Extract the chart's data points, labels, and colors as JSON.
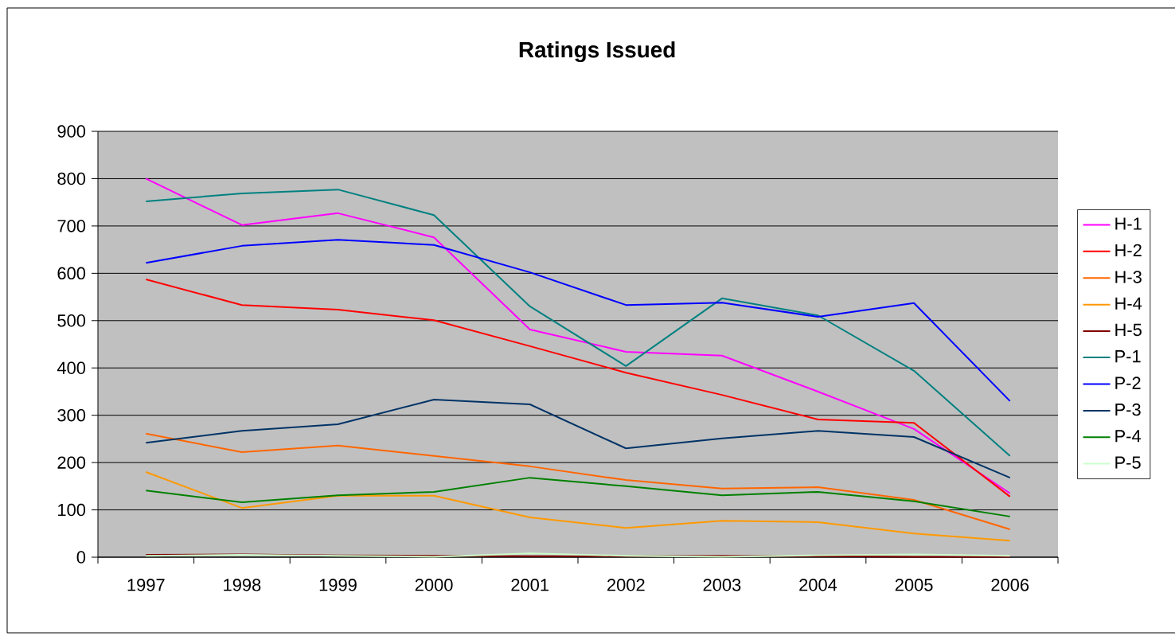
{
  "chart_data": {
    "type": "line",
    "title": "Ratings Issued",
    "categories": [
      "1997",
      "1998",
      "1999",
      "2000",
      "2001",
      "2002",
      "2003",
      "2004",
      "2005",
      "2006"
    ],
    "series": [
      {
        "name": "H-1",
        "color": "#ff00ff",
        "values": [
          800,
          702,
          727,
          676,
          481,
          434,
          426,
          350,
          271,
          135
        ]
      },
      {
        "name": "H-2",
        "color": "#ff0000",
        "values": [
          587,
          533,
          523,
          501,
          446,
          390,
          343,
          291,
          284,
          128
        ]
      },
      {
        "name": "H-3",
        "color": "#ff6600",
        "values": [
          261,
          222,
          236,
          214,
          192,
          163,
          145,
          148,
          121,
          59
        ]
      },
      {
        "name": "H-4",
        "color": "#ff9900",
        "values": [
          180,
          104,
          130,
          130,
          84,
          62,
          77,
          74,
          50,
          35
        ]
      },
      {
        "name": "H-5",
        "color": "#800000",
        "values": [
          5,
          6,
          4,
          3,
          2,
          2,
          3,
          2,
          1,
          1
        ]
      },
      {
        "name": "P-1",
        "color": "#008080",
        "values": [
          752,
          769,
          777,
          723,
          530,
          404,
          547,
          511,
          394,
          214
        ]
      },
      {
        "name": "P-2",
        "color": "#0000ff",
        "values": [
          622,
          658,
          671,
          660,
          602,
          533,
          538,
          508,
          537,
          330
        ]
      },
      {
        "name": "P-3",
        "color": "#003366",
        "values": [
          242,
          267,
          281,
          333,
          323,
          230,
          251,
          267,
          254,
          168
        ]
      },
      {
        "name": "P-4",
        "color": "#008000",
        "values": [
          141,
          116,
          131,
          138,
          168,
          150,
          131,
          138,
          118,
          86
        ]
      },
      {
        "name": "P-5",
        "color": "#ccffcc",
        "values": [
          3,
          5,
          3,
          1,
          8,
          3,
          1,
          4,
          6,
          3
        ]
      }
    ],
    "ylim": [
      0,
      900
    ],
    "yticks": [
      0,
      100,
      200,
      300,
      400,
      500,
      600,
      700,
      800,
      900
    ],
    "grid": "y",
    "legend": "right",
    "marker": "none",
    "line_style": "solid"
  }
}
